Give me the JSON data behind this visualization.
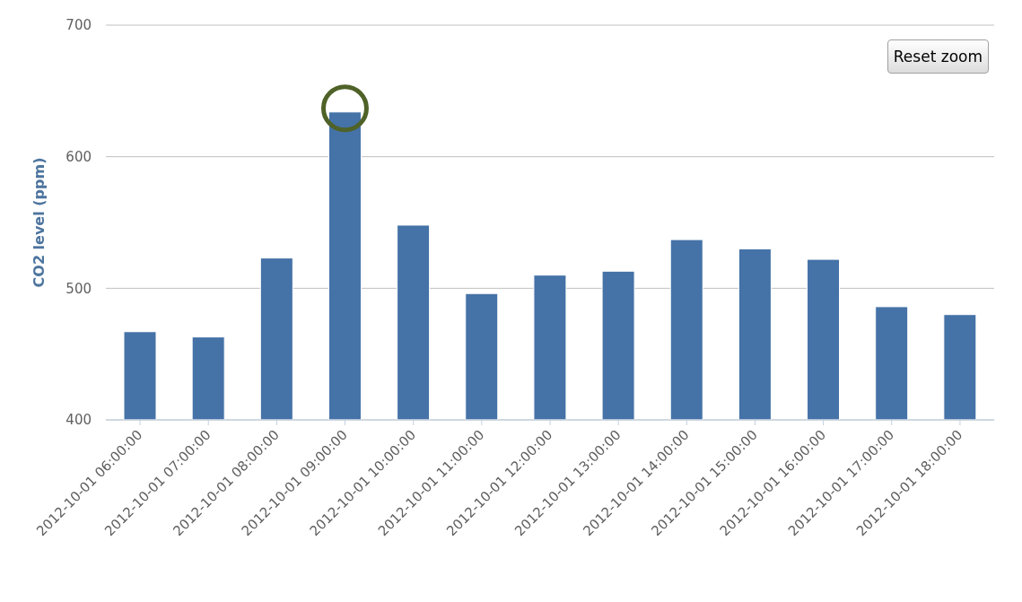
{
  "chart_data": {
    "type": "bar",
    "ylabel": "CO2 level (ppm)",
    "categories": [
      "2012-10-01 06:00:00",
      "2012-10-01 07:00:00",
      "2012-10-01 08:00:00",
      "2012-10-01 09:00:00",
      "2012-10-01 10:00:00",
      "2012-10-01 11:00:00",
      "2012-10-01 12:00:00",
      "2012-10-01 13:00:00",
      "2012-10-01 14:00:00",
      "2012-10-01 15:00:00",
      "2012-10-01 16:00:00",
      "2012-10-01 17:00:00",
      "2012-10-01 18:00:00"
    ],
    "values": [
      467,
      463,
      523,
      634,
      548,
      496,
      510,
      513,
      537,
      530,
      522,
      486,
      480
    ],
    "color": "#4572a7",
    "ylim": [
      400,
      700
    ],
    "yticks": [
      400,
      500,
      600,
      700
    ],
    "grid": "y",
    "legend": false,
    "annotations": [
      "Reset zoom"
    ]
  }
}
